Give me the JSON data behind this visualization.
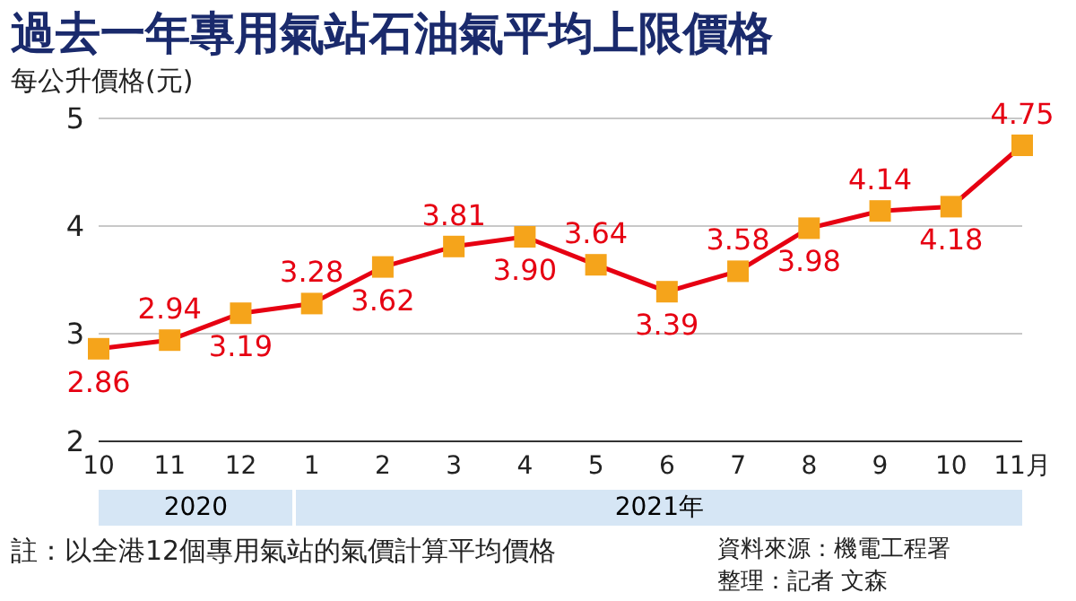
{
  "chart_data": {
    "type": "line",
    "title": "過去一年專用氣站石油氣平均上限價格",
    "ylabel": "每公升價格(元)",
    "categories": [
      "10",
      "11",
      "12",
      "1",
      "2",
      "3",
      "4",
      "5",
      "6",
      "7",
      "8",
      "9",
      "10",
      "11月"
    ],
    "series": [
      {
        "color": "#e60012",
        "values": [
          2.86,
          2.94,
          3.19,
          3.28,
          3.62,
          3.81,
          3.9,
          3.64,
          3.39,
          3.58,
          3.98,
          4.14,
          4.18,
          4.75
        ],
        "value_labels": [
          "2.86",
          "2.94",
          "3.19",
          "3.28",
          "3.62",
          "3.81",
          "3.90",
          "3.64",
          "3.39",
          "3.58",
          "3.98",
          "4.14",
          "4.18",
          "4.75"
        ]
      }
    ],
    "ylim": [
      2,
      5
    ],
    "yticks": [
      2,
      3,
      4,
      5
    ],
    "grid": "y",
    "marker": "square",
    "line_style": "solid",
    "annotations": [
      "2020",
      "2021年",
      "註：以全港12個專用氣站的氣價計算平均價格",
      "資料來源：機電工程署",
      "整理：記者 文森"
    ]
  }
}
